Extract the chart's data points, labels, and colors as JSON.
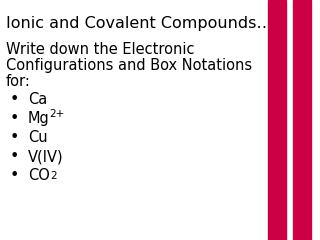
{
  "title": "Ionic and Covalent Compounds…",
  "subtitle_line1": "Write down the Electronic",
  "subtitle_line2": "Configurations and Box Notations",
  "subtitle_line3": "for:",
  "bullets": [
    {
      "main": "Ca",
      "sup": "",
      "sub": ""
    },
    {
      "main": "Mg",
      "sup": "2+",
      "sub": ""
    },
    {
      "main": "Cu",
      "sup": "",
      "sub": ""
    },
    {
      "main": "V(IV)",
      "sup": "",
      "sub": ""
    },
    {
      "main": "CO",
      "sup": "",
      "sub": "2"
    }
  ],
  "background_color": "#ffffff",
  "text_color": "#000000",
  "bar_color": "#cc0044",
  "title_fontsize": 11.5,
  "body_fontsize": 10.5,
  "bullet_fontsize": 10.5,
  "sup_sub_fontsize": 7.5,
  "font_family": "DejaVu Sans"
}
